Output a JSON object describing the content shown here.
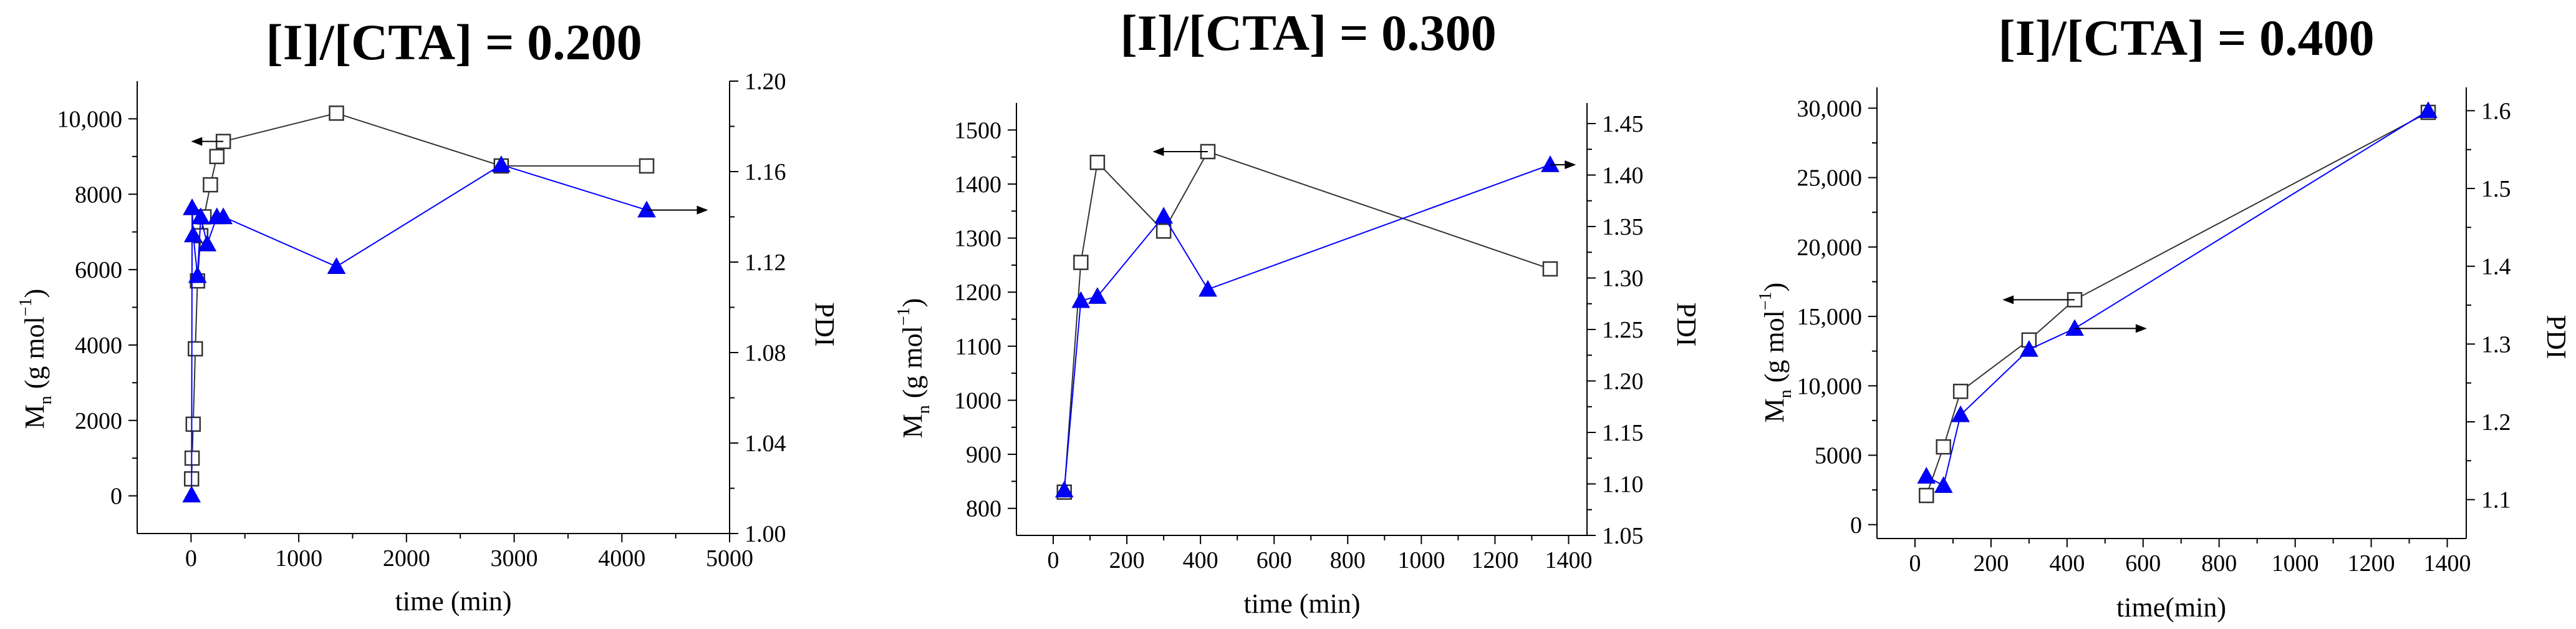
{
  "chart_data": [
    {
      "type": "line",
      "title": "[I]/[CTA] = 0.200",
      "xlabel": "time (min)",
      "ylabel_left": "Mn (g mol−1)",
      "ylabel_right": "PDI",
      "xlim": [
        -500,
        5000
      ],
      "ylim_left": [
        -1000,
        11000
      ],
      "ylim_right": [
        1.0,
        1.2
      ],
      "x_ticks": [
        0,
        1000,
        2000,
        3000,
        4000,
        5000
      ],
      "x_tick_labels": [
        "0",
        "1000",
        "2000",
        "3000",
        "4000",
        "5000"
      ],
      "y_left_ticks": [
        0,
        2000,
        4000,
        6000,
        8000,
        10000
      ],
      "y_left_tick_labels": [
        "0",
        "2000",
        "4000",
        "6000",
        "8000",
        "10,000"
      ],
      "y_right_ticks": [
        1.0,
        1.04,
        1.08,
        1.12,
        1.16,
        1.2
      ],
      "y_right_tick_labels": [
        "1.00",
        "1.04",
        "1.08",
        "1.12",
        "1.16",
        "1.20"
      ],
      "series": [
        {
          "name": "Mn",
          "axis": "left",
          "marker": "open-square",
          "x": [
            5,
            10,
            20,
            40,
            60,
            90,
            120,
            180,
            240,
            300,
            1350,
            2880,
            4230
          ],
          "y": [
            450,
            1000,
            1900,
            3900,
            5700,
            6900,
            7400,
            8250,
            9000,
            9400,
            10150,
            8750,
            8750
          ]
        },
        {
          "name": "PDI",
          "axis": "right",
          "marker": "filled-triangle",
          "x": [
            5,
            10,
            20,
            60,
            90,
            150,
            240,
            300,
            1350,
            2880,
            4230
          ],
          "y": [
            1.017,
            1.144,
            1.132,
            1.114,
            1.14,
            1.128,
            1.14,
            1.14,
            1.118,
            1.163,
            1.143
          ]
        }
      ],
      "annotations": [
        {
          "type": "arrow",
          "points_to": "left-axis",
          "series": "Mn",
          "x": [
            300,
            0
          ],
          "y": 9400
        },
        {
          "type": "arrow",
          "points_to": "right-axis",
          "series": "PDI",
          "x": [
            4230,
            4800
          ],
          "y": 1.143
        }
      ]
    },
    {
      "type": "line",
      "title": "[I]/[CTA] = 0.300",
      "xlabel": "time (min)",
      "ylabel_left": "Mn (g mol−1)",
      "ylabel_right": "PDI",
      "xlim": [
        -100,
        1450
      ],
      "ylim_left": [
        750,
        1550
      ],
      "ylim_right": [
        1.05,
        1.47
      ],
      "x_ticks": [
        0,
        200,
        400,
        600,
        800,
        1000,
        1200,
        1400
      ],
      "x_tick_labels": [
        "0",
        "200",
        "400",
        "600",
        "800",
        "1000",
        "1200",
        "1400"
      ],
      "y_left_ticks": [
        800,
        900,
        1000,
        1100,
        1200,
        1300,
        1400,
        1500
      ],
      "y_left_tick_labels": [
        "800",
        "900",
        "1000",
        "1100",
        "1200",
        "1300",
        "1400",
        "1500"
      ],
      "y_right_ticks": [
        1.05,
        1.1,
        1.15,
        1.2,
        1.25,
        1.3,
        1.35,
        1.4,
        1.45
      ],
      "y_right_tick_labels": [
        "1.05",
        "1.10",
        "1.15",
        "1.20",
        "1.25",
        "1.30",
        "1.35",
        "1.40",
        "1.45"
      ],
      "series": [
        {
          "name": "Mn",
          "axis": "left",
          "marker": "open-square",
          "x": [
            30,
            75,
            120,
            300,
            420,
            1350
          ],
          "y": [
            830,
            1255,
            1440,
            1313,
            1460,
            1243
          ]
        },
        {
          "name": "PDI",
          "axis": "right",
          "marker": "filled-triangle",
          "x": [
            30,
            75,
            120,
            300,
            420,
            1350
          ],
          "y": [
            1.094,
            1.278,
            1.282,
            1.36,
            1.289,
            1.41
          ]
        }
      ],
      "annotations": [
        {
          "type": "arrow",
          "points_to": "left-axis",
          "series": "Mn",
          "x": [
            420,
            270
          ],
          "y": 1460
        },
        {
          "type": "arrow",
          "points_to": "right-axis",
          "series": "PDI",
          "x": [
            1350,
            1420
          ],
          "y": 1.41
        }
      ]
    },
    {
      "type": "line",
      "title": "[I]/[CTA] = 0.400",
      "xlabel": "time(min)",
      "ylabel_left": "Mn (g mol−1)",
      "ylabel_right": "PDI",
      "xlim": [
        -100,
        1450
      ],
      "ylim_left": [
        -1000,
        31500
      ],
      "ylim_right": [
        1.05,
        1.63
      ],
      "x_ticks": [
        0,
        200,
        400,
        600,
        800,
        1000,
        1200,
        1400
      ],
      "x_tick_labels": [
        "0",
        "200",
        "400",
        "600",
        "800",
        "1000",
        "1200",
        "1400"
      ],
      "y_left_ticks": [
        0,
        5000,
        10000,
        15000,
        20000,
        25000,
        30000
      ],
      "y_left_tick_labels": [
        "0",
        "5000",
        "10,000",
        "15,000",
        "20,000",
        "25,000",
        "30,000"
      ],
      "y_right_ticks": [
        1.1,
        1.2,
        1.3,
        1.4,
        1.5,
        1.6
      ],
      "y_right_tick_labels": [
        "1.1",
        "1.2",
        "1.3",
        "1.4",
        "1.5",
        "1.6"
      ],
      "series": [
        {
          "name": "Mn",
          "axis": "left",
          "marker": "open-square",
          "x": [
            30,
            75,
            120,
            300,
            420,
            1350
          ],
          "y": [
            2100,
            5600,
            9600,
            13300,
            16200,
            29700
          ]
        },
        {
          "name": "PDI",
          "axis": "right",
          "marker": "filled-triangle",
          "x": [
            30,
            75,
            120,
            300,
            420,
            1350
          ],
          "y": [
            1.13,
            1.118,
            1.209,
            1.293,
            1.32,
            1.6
          ]
        }
      ],
      "annotations": [
        {
          "type": "arrow",
          "points_to": "left-axis",
          "series": "Mn",
          "x": [
            420,
            230
          ],
          "y": 16200
        },
        {
          "type": "arrow",
          "points_to": "right-axis",
          "series": "PDI",
          "x": [
            420,
            610
          ],
          "y": 1.32
        }
      ]
    }
  ]
}
